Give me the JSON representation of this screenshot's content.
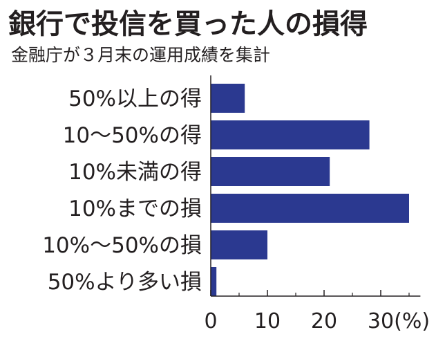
{
  "header": {
    "title": "銀行で投信を買った人の損得",
    "subtitle": "金融庁が３月末の運用成績を集計"
  },
  "chart_data": {
    "type": "bar",
    "orientation": "horizontal",
    "title": "銀行で投信を買った人の損得",
    "subtitle": "金融庁が３月末の運用成績を集計",
    "categories": [
      "50%以上の得",
      "10～50%の得",
      "10%未満の得",
      "10%までの損",
      "10%～50%の損",
      "50%より多い損"
    ],
    "values": [
      6,
      28,
      21,
      35,
      10,
      1
    ],
    "xlabel": "(%)",
    "xlim": [
      0,
      37
    ],
    "xticks": [
      0,
      10,
      20,
      30
    ],
    "unit": "(%)",
    "grid": false,
    "legend": "none",
    "colors": {
      "bar": "#2b3990",
      "text": "#231f20",
      "axis": "#231f20"
    }
  }
}
